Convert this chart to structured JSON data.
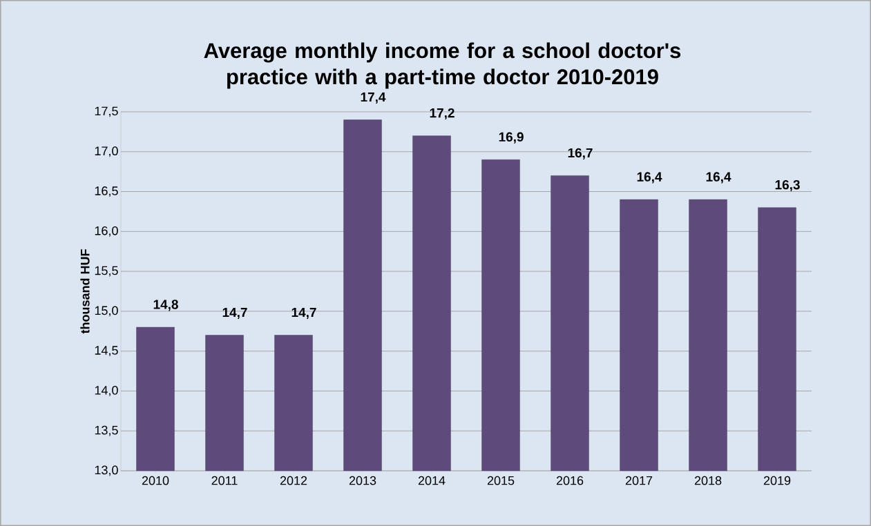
{
  "chart_data": {
    "type": "bar",
    "title": "Average monthly income for a school doctor's practice with a part-time doctor 2010-2019",
    "ylabel": "thousand HUF",
    "categories": [
      "2010",
      "2011",
      "2012",
      "2013",
      "2014",
      "2015",
      "2016",
      "2017",
      "2018",
      "2019"
    ],
    "values": [
      14.8,
      14.7,
      14.7,
      17.4,
      17.2,
      16.9,
      16.7,
      16.4,
      16.4,
      16.3
    ],
    "value_labels": [
      "14,8",
      "14,7",
      "14,7",
      "17,4",
      "17,2",
      "16,9",
      "16,7",
      "16,4",
      "16,4",
      "16,3"
    ],
    "color": "#5f4b7b",
    "ylim": [
      13,
      17.5
    ],
    "yticks": [
      {
        "value": 13,
        "label": "13,0"
      },
      {
        "value": 13.5,
        "label": "13,5"
      },
      {
        "value": 14,
        "label": "14,0"
      },
      {
        "value": 14.5,
        "label": "14,5"
      },
      {
        "value": 15,
        "label": "15,0"
      },
      {
        "value": 15.5,
        "label": "15,5"
      },
      {
        "value": 16,
        "label": "16,0"
      },
      {
        "value": 16.5,
        "label": "16,5"
      },
      {
        "value": 17,
        "label": "17,0"
      },
      {
        "value": 17.5,
        "label": "17,5"
      }
    ],
    "grid": "y"
  }
}
